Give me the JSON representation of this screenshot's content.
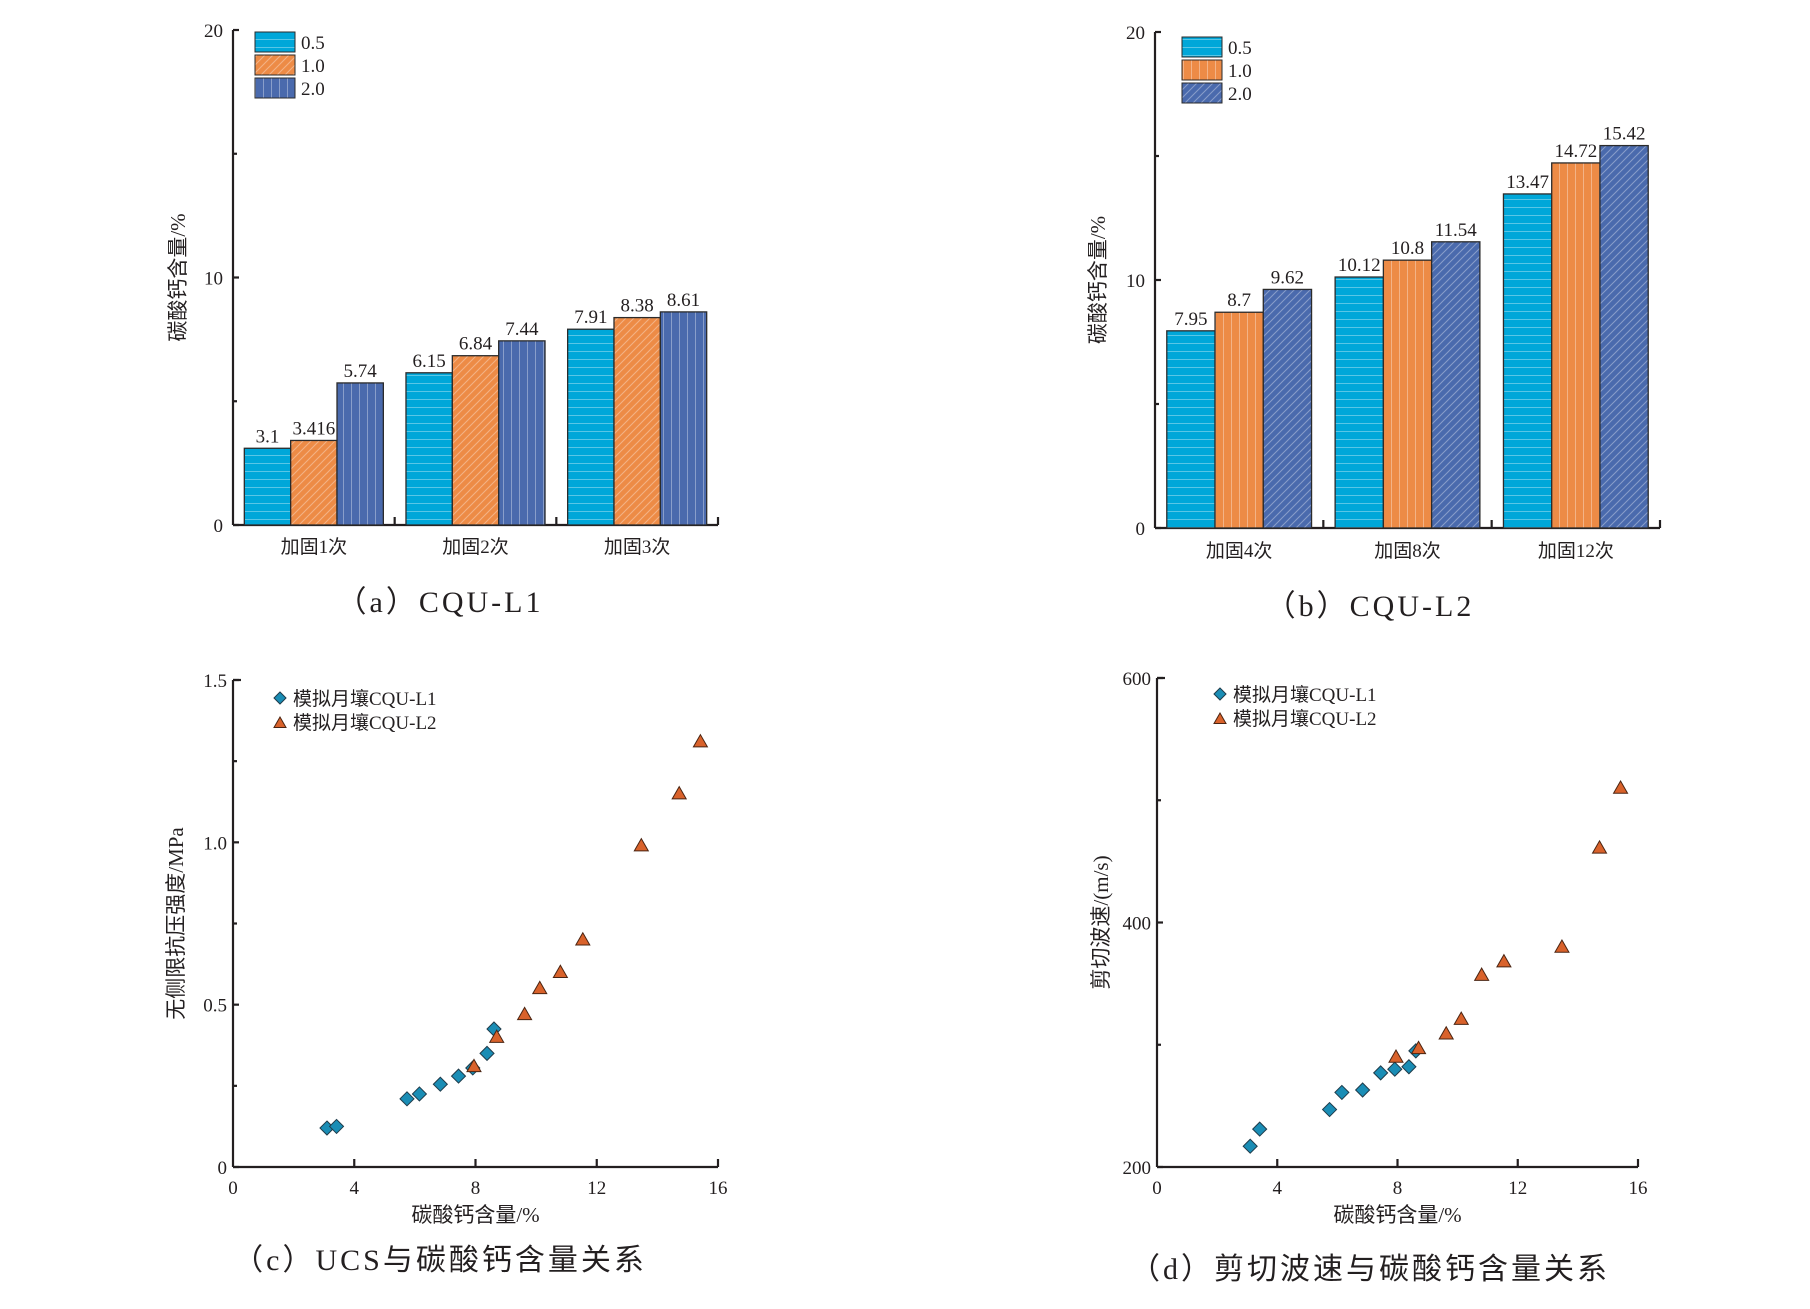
{
  "chart_data": [
    {
      "id": "a",
      "type": "bar",
      "caption": "（a）CQU-L1",
      "title": "",
      "xlabel": "",
      "ylabel": "碳酸钙含量/%",
      "ylim": [
        0,
        20
      ],
      "yticks": [
        "0",
        "10",
        "20"
      ],
      "categories": [
        "加固1次",
        "加固2次",
        "加固3次"
      ],
      "legend_position": "top-left",
      "series": [
        {
          "name": "0.5",
          "color": "#00a7d9",
          "pattern": "horizontal-lines",
          "values": [
            3.1,
            6.15,
            7.91
          ],
          "labels": [
            "3.1",
            "6.15",
            "7.91"
          ]
        },
        {
          "name": "1.0",
          "color": "#ed8b46",
          "pattern": "diagonal-lines",
          "values": [
            3.416,
            6.84,
            8.38
          ],
          "labels": [
            "3.416",
            "6.84",
            "8.38"
          ]
        },
        {
          "name": "2.0",
          "color": "#4a6aad",
          "pattern": "vertical-lines",
          "values": [
            5.74,
            7.44,
            8.61
          ],
          "labels": [
            "5.74",
            "7.44",
            "8.61"
          ]
        }
      ]
    },
    {
      "id": "b",
      "type": "bar",
      "caption": "（b）CQU-L2",
      "title": "",
      "xlabel": "",
      "ylabel": "碳酸钙含量/%",
      "ylim": [
        0,
        20
      ],
      "yticks": [
        "0",
        "10",
        "20"
      ],
      "categories": [
        "加固4次",
        "加固8次",
        "加固12次"
      ],
      "legend_position": "top-left",
      "series": [
        {
          "name": "0.5",
          "color": "#00a7d9",
          "pattern": "horizontal-lines",
          "values": [
            7.95,
            10.12,
            13.47
          ],
          "labels": [
            "7.95",
            "10.12",
            "13.47"
          ]
        },
        {
          "name": "1.0",
          "color": "#ed8b46",
          "pattern": "vertical-lines",
          "values": [
            8.7,
            10.8,
            14.72
          ],
          "labels": [
            "8.7",
            "10.8",
            "14.72"
          ]
        },
        {
          "name": "2.0",
          "color": "#4a6aad",
          "pattern": "diagonal-lines",
          "values": [
            9.62,
            11.54,
            15.42
          ],
          "labels": [
            "9.62",
            "11.54",
            "15.42"
          ]
        }
      ]
    },
    {
      "id": "c",
      "type": "scatter",
      "caption": "（c）UCS与碳酸钙含量关系",
      "title": "",
      "xlabel": "碳酸钙含量/%",
      "ylabel": "无侧限抗压强度/MPa",
      "xlim": [
        0,
        16
      ],
      "ylim": [
        0,
        1.5
      ],
      "xticks": [
        "0",
        "4",
        "8",
        "12",
        "16"
      ],
      "yticks": [
        "0",
        "0.5",
        "1.0",
        "1.5"
      ],
      "grid": false,
      "legend_position": "top-left",
      "series": [
        {
          "name": "模拟月壤CQU-L1",
          "marker": "diamond",
          "color": "#1a8db5",
          "x": [
            3.1,
            3.416,
            5.74,
            6.15,
            6.84,
            7.44,
            7.91,
            8.38,
            8.61
          ],
          "y": [
            0.12,
            0.125,
            0.21,
            0.225,
            0.255,
            0.28,
            0.305,
            0.35,
            0.425
          ]
        },
        {
          "name": "模拟月壤CQU-L2",
          "marker": "triangle",
          "color": "#d9622b",
          "x": [
            7.95,
            8.7,
            9.62,
            10.12,
            10.8,
            11.54,
            13.47,
            14.72,
            15.42
          ],
          "y": [
            0.31,
            0.4,
            0.47,
            0.55,
            0.6,
            0.7,
            0.99,
            1.15,
            1.31
          ]
        }
      ]
    },
    {
      "id": "d",
      "type": "scatter",
      "caption": "（d）剪切波速与碳酸钙含量关系",
      "title": "",
      "xlabel": "碳酸钙含量/%",
      "ylabel": "剪切波速/(m/s)",
      "xlim": [
        0,
        16
      ],
      "ylim": [
        200,
        600
      ],
      "xticks": [
        "0",
        "4",
        "8",
        "12",
        "16"
      ],
      "yticks": [
        "200",
        "400",
        "600"
      ],
      "grid": false,
      "legend_position": "top-left",
      "series": [
        {
          "name": "模拟月壤CQU-L1",
          "marker": "diamond",
          "color": "#1a8db5",
          "x": [
            3.1,
            3.416,
            5.74,
            6.15,
            6.84,
            7.44,
            7.91,
            8.38,
            8.61
          ],
          "y": [
            217,
            231,
            247,
            261,
            263,
            277,
            280,
            282,
            295
          ]
        },
        {
          "name": "模拟月壤CQU-L2",
          "marker": "triangle",
          "color": "#d9622b",
          "x": [
            7.95,
            8.7,
            9.62,
            10.12,
            10.8,
            11.54,
            13.47,
            14.72,
            15.42
          ],
          "y": [
            290,
            297,
            309,
            321,
            357,
            368,
            380,
            461,
            510
          ]
        }
      ]
    }
  ]
}
